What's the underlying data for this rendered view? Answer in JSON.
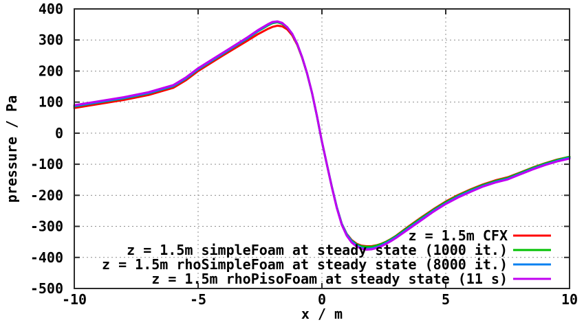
{
  "chart_data": {
    "type": "line",
    "title": "",
    "xlabel": "x / m",
    "ylabel": "pressure / Pa",
    "xlim": [
      -10,
      10
    ],
    "ylim": [
      -500,
      400
    ],
    "x_ticks": [
      -10,
      -5,
      0,
      5,
      10
    ],
    "y_ticks": [
      -500,
      -400,
      -300,
      -200,
      -100,
      0,
      100,
      200,
      300,
      400
    ],
    "grid": true,
    "legend_position": "bottom-right",
    "text_color": "#000000",
    "grid_color": "#8c8c8c",
    "border_color": "#2a2a2a",
    "x": [
      -10,
      -9,
      -8,
      -7,
      -6,
      -5.5,
      -5,
      -4.5,
      -4,
      -3.5,
      -3,
      -2.6,
      -2.2,
      -2,
      -1.8,
      -1.6,
      -1.4,
      -1.2,
      -1,
      -0.8,
      -0.6,
      -0.4,
      -0.2,
      0,
      0.2,
      0.4,
      0.6,
      0.8,
      1,
      1.2,
      1.4,
      1.6,
      1.8,
      2,
      2.2,
      2.4,
      2.6,
      2.8,
      3,
      3.5,
      4,
      4.5,
      5,
      5.5,
      6,
      6.5,
      7,
      7.5,
      8,
      8.5,
      9,
      9.5,
      10
    ],
    "series": [
      {
        "name": "z = 1.5m CFX",
        "color": "#ff0000",
        "values": [
          81,
          94,
          107,
          123,
          146,
          170,
          200,
          225,
          250,
          274,
          298,
          318,
          335,
          342,
          346,
          344,
          334,
          315,
          285,
          243,
          192,
          130,
          55,
          -27,
          -100,
          -172,
          -238,
          -291,
          -324,
          -344,
          -356,
          -362,
          -364,
          -364,
          -361,
          -356,
          -349,
          -340,
          -330,
          -300,
          -272,
          -245,
          -220,
          -199,
          -181,
          -165,
          -152,
          -142,
          -127,
          -111,
          -97,
          -85,
          -76
        ]
      },
      {
        "name": "z = 1.5m simpleFoam at steady state (1000 it.)",
        "color": "#00c000",
        "values": [
          86,
          99,
          112,
          128,
          151,
          175,
          205,
          230,
          255,
          280,
          305,
          327,
          346,
          354,
          357,
          352,
          340,
          319,
          287,
          244,
          192,
          129,
          54,
          -28,
          -101,
          -173,
          -239,
          -292,
          -325,
          -346,
          -358,
          -364,
          -366,
          -366,
          -362,
          -357,
          -350,
          -341,
          -331,
          -302,
          -274,
          -247,
          -222,
          -201,
          -183,
          -167,
          -154,
          -144,
          -128,
          -112,
          -98,
          -86,
          -76
        ]
      },
      {
        "name": "z = 1.5m rhoSimpleFoam at steady state (8000 it.)",
        "color": "#0a80f0",
        "values": [
          87,
          100,
          113,
          129,
          152,
          176,
          206,
          231,
          256,
          281,
          306,
          328,
          348,
          356,
          359,
          354,
          341,
          320,
          288,
          245,
          193,
          130,
          55,
          -27,
          -100,
          -172,
          -238,
          -292,
          -326,
          -348,
          -361,
          -369,
          -372,
          -371,
          -367,
          -361,
          -353,
          -344,
          -334,
          -306,
          -278,
          -250,
          -226,
          -204,
          -186,
          -170,
          -157,
          -147,
          -131,
          -115,
          -101,
          -89,
          -79
        ]
      },
      {
        "name": "z = 1.5m rhoPisoFoam at steady state (11 s)",
        "color": "#c000f0",
        "values": [
          90,
          103,
          116,
          132,
          155,
          179,
          209,
          234,
          259,
          284,
          309,
          331,
          350,
          358,
          360,
          355,
          341,
          320,
          288,
          245,
          193,
          130,
          55,
          -27,
          -101,
          -174,
          -241,
          -295,
          -330,
          -352,
          -365,
          -372,
          -375,
          -374,
          -370,
          -364,
          -356,
          -347,
          -337,
          -309,
          -281,
          -253,
          -228,
          -207,
          -189,
          -172,
          -159,
          -149,
          -133,
          -117,
          -103,
          -91,
          -82
        ]
      }
    ]
  }
}
